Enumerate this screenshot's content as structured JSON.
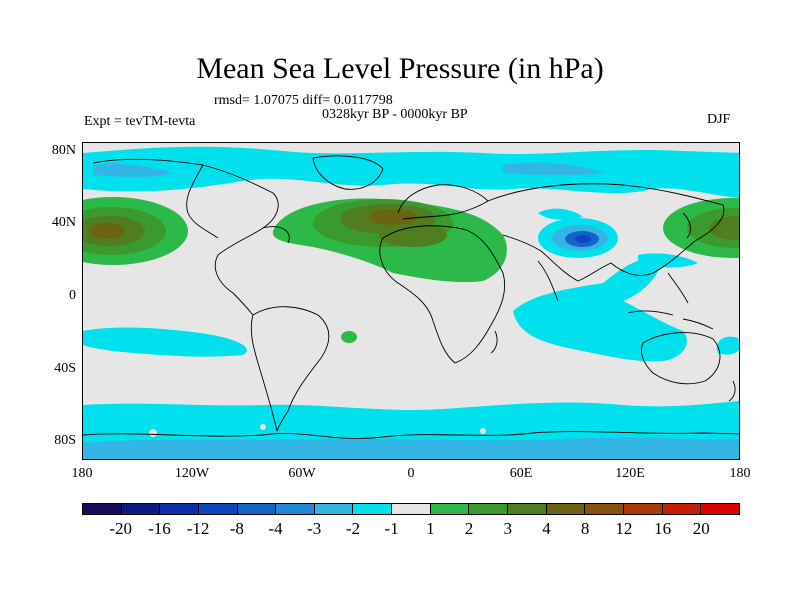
{
  "title": "Mean Sea Level Pressure (in hPa)",
  "stats": "rmsd= 1.07075 diff= 0.0117798",
  "period": "0328kyr BP - 0000kyr BP",
  "expt": "Expt = tevTM-tevta",
  "season": "DJF",
  "lat_labels": [
    "80N",
    "40N",
    "0",
    "40S",
    "80S"
  ],
  "lon_labels": [
    "180",
    "120W",
    "60W",
    "0",
    "60E",
    "120E",
    "180"
  ],
  "colorbar": {
    "labels": [
      "-20",
      "-16",
      "-12",
      "-8",
      "-4",
      "-3",
      "-2",
      "-1",
      "1",
      "2",
      "3",
      "4",
      "8",
      "12",
      "16",
      "20"
    ],
    "colors": [
      "#1a0a5e",
      "#0b1a88",
      "#0a2fa8",
      "#0d47bf",
      "#1565c8",
      "#1e88d6",
      "#33b5e5",
      "#00e1ee",
      "#e6e6e6",
      "#2db84a",
      "#3a9a2e",
      "#4f7d1f",
      "#6b6412",
      "#8a5010",
      "#a83a0a",
      "#c41e05",
      "#e00000"
    ]
  },
  "map_colors": {
    "land_outline": "#000000",
    "neg1": "#00e1ee",
    "neg2": "#33b5e5",
    "neg4": "#1565c8",
    "neg8": "#0d47bf",
    "pos1": "#2db84a",
    "pos2": "#3a9a2e",
    "pos3": "#4f7d1f",
    "pos4": "#6b6412"
  }
}
